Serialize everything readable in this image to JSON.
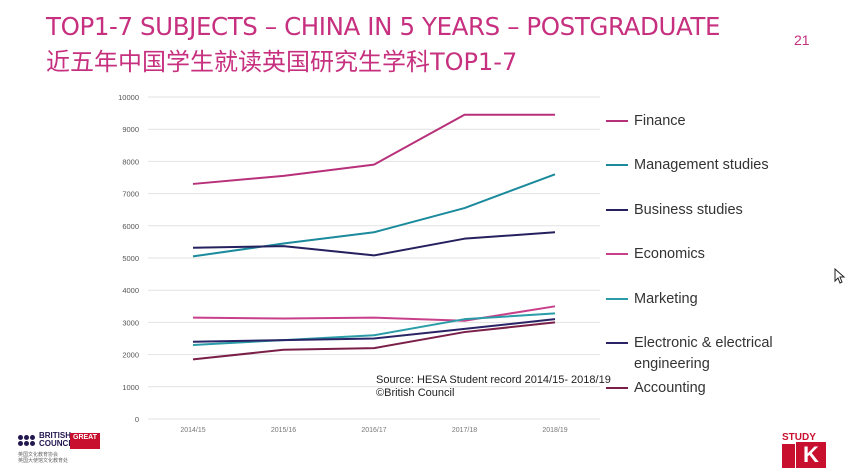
{
  "slide": {
    "title_en": "TOP1-7 SUBJECTS – CHINA IN 5 YEARS – POSTGRADUATE",
    "title_zh": "近五年中国学生就读英国研究生学科TOP1-7",
    "page_number": "21",
    "source_line1": "Source: HESA Student record 2014/15- 2018/19",
    "source_line2": "©British Council",
    "footer": {
      "british_council_line1": "BRITISH",
      "british_council_line2": "COUNCIL",
      "bc_sub1": "英国文化教育协会",
      "bc_sub2": "英国大使馆文化教育处",
      "great_label": "GREAT",
      "study_label": "STUDY",
      "uk_label": "K"
    }
  },
  "colors": {
    "accent": "#c6307f",
    "finance": "#b8307a",
    "management": "#1a8a9c",
    "business": "#25205e",
    "economics": "#c8408a",
    "marketing": "#2a9ca8",
    "electronic": "#2a2466",
    "accounting": "#7a1f48"
  },
  "chart_data": {
    "type": "line",
    "categories": [
      "2014/15",
      "2015/16",
      "2016/17",
      "2017/18",
      "2018/19"
    ],
    "ylim": [
      0,
      10000
    ],
    "yticks": [
      0,
      1000,
      2000,
      3000,
      4000,
      5000,
      6000,
      7000,
      8000,
      9000,
      10000
    ],
    "grid": true,
    "legend_position": "right",
    "series": [
      {
        "name": "Finance",
        "color": "#b8307a",
        "values": [
          7300,
          7550,
          7900,
          9450,
          9450
        ]
      },
      {
        "name": "Management studies",
        "color": "#1a8a9c",
        "values": [
          5050,
          5450,
          5800,
          6550,
          7600
        ]
      },
      {
        "name": "Business studies",
        "color": "#25205e",
        "values": [
          5320,
          5370,
          5080,
          5600,
          5800
        ]
      },
      {
        "name": "Economics",
        "color": "#c8408a",
        "values": [
          3150,
          3120,
          3150,
          3050,
          3500
        ]
      },
      {
        "name": "Marketing",
        "color": "#2a9ca8",
        "values": [
          2300,
          2450,
          2600,
          3100,
          3280
        ]
      },
      {
        "name": "Electronic & electrical engineering",
        "color": "#2a2466",
        "values": [
          2400,
          2450,
          2500,
          2800,
          3100
        ]
      },
      {
        "name": "Accounting",
        "color": "#7a1f48",
        "values": [
          1850,
          2150,
          2200,
          2700,
          3000
        ]
      }
    ]
  }
}
